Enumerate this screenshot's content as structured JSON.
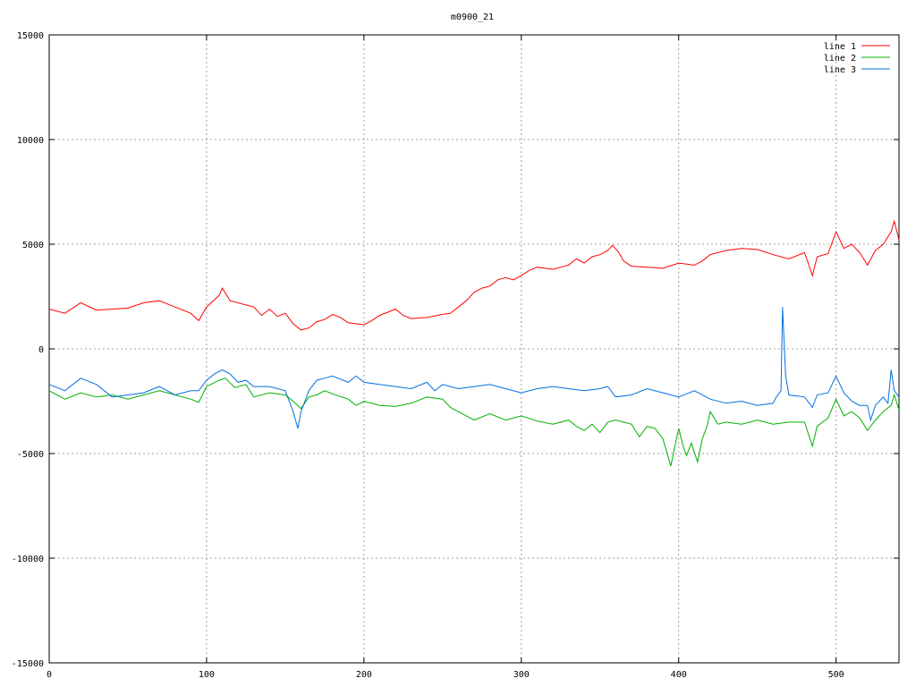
{
  "chart_data": {
    "type": "line",
    "title": "m0900_21",
    "xlabel": "",
    "ylabel": "",
    "xlim": [
      0,
      540
    ],
    "ylim": [
      -15000,
      15000
    ],
    "x_ticks": [
      0,
      100,
      200,
      300,
      400,
      500
    ],
    "y_ticks": [
      -15000,
      -10000,
      -5000,
      0,
      5000,
      10000,
      15000
    ],
    "x_tick_labels": [
      "0",
      "100",
      "200",
      "300",
      "400",
      "500"
    ],
    "y_tick_labels": [
      "-15000",
      "-10000",
      "-5000",
      "0",
      "5000",
      "10000",
      "15000"
    ],
    "grid": true,
    "legend_position": "top-right",
    "series": [
      {
        "name": "line 1",
        "color": "#ff0000",
        "points": [
          [
            0,
            1900
          ],
          [
            10,
            1700
          ],
          [
            20,
            2200
          ],
          [
            30,
            1850
          ],
          [
            40,
            1900
          ],
          [
            50,
            1950
          ],
          [
            60,
            2200
          ],
          [
            70,
            2300
          ],
          [
            80,
            2000
          ],
          [
            90,
            1700
          ],
          [
            95,
            1350
          ],
          [
            100,
            2000
          ],
          [
            108,
            2550
          ],
          [
            110,
            2900
          ],
          [
            115,
            2300
          ],
          [
            125,
            2100
          ],
          [
            130,
            2000
          ],
          [
            135,
            1600
          ],
          [
            140,
            1900
          ],
          [
            145,
            1550
          ],
          [
            150,
            1700
          ],
          [
            155,
            1200
          ],
          [
            160,
            900
          ],
          [
            165,
            1000
          ],
          [
            170,
            1300
          ],
          [
            175,
            1400
          ],
          [
            180,
            1650
          ],
          [
            185,
            1500
          ],
          [
            190,
            1250
          ],
          [
            200,
            1150
          ],
          [
            205,
            1350
          ],
          [
            210,
            1600
          ],
          [
            215,
            1750
          ],
          [
            220,
            1900
          ],
          [
            225,
            1600
          ],
          [
            230,
            1450
          ],
          [
            240,
            1500
          ],
          [
            250,
            1650
          ],
          [
            255,
            1700
          ],
          [
            260,
            2000
          ],
          [
            265,
            2300
          ],
          [
            270,
            2700
          ],
          [
            275,
            2900
          ],
          [
            280,
            3000
          ],
          [
            285,
            3300
          ],
          [
            290,
            3400
          ],
          [
            295,
            3300
          ],
          [
            300,
            3500
          ],
          [
            305,
            3750
          ],
          [
            310,
            3900
          ],
          [
            315,
            3850
          ],
          [
            320,
            3800
          ],
          [
            325,
            3900
          ],
          [
            330,
            4000
          ],
          [
            335,
            4300
          ],
          [
            340,
            4100
          ],
          [
            345,
            4400
          ],
          [
            350,
            4500
          ],
          [
            355,
            4700
          ],
          [
            358,
            4950
          ],
          [
            362,
            4600
          ],
          [
            365,
            4200
          ],
          [
            370,
            3950
          ],
          [
            380,
            3900
          ],
          [
            390,
            3850
          ],
          [
            400,
            4100
          ],
          [
            410,
            4000
          ],
          [
            415,
            4200
          ],
          [
            420,
            4500
          ],
          [
            430,
            4700
          ],
          [
            440,
            4800
          ],
          [
            450,
            4750
          ],
          [
            460,
            4500
          ],
          [
            470,
            4300
          ],
          [
            480,
            4600
          ],
          [
            485,
            3500
          ],
          [
            488,
            4400
          ],
          [
            495,
            4550
          ],
          [
            500,
            5600
          ],
          [
            505,
            4800
          ],
          [
            510,
            5000
          ],
          [
            515,
            4600
          ],
          [
            520,
            4000
          ],
          [
            525,
            4700
          ],
          [
            530,
            5000
          ],
          [
            535,
            5600
          ],
          [
            537,
            6100
          ],
          [
            540,
            5200
          ]
        ]
      },
      {
        "name": "line 2",
        "color": "#00b000",
        "points": [
          [
            0,
            -2000
          ],
          [
            10,
            -2400
          ],
          [
            20,
            -2100
          ],
          [
            30,
            -2300
          ],
          [
            40,
            -2200
          ],
          [
            50,
            -2400
          ],
          [
            60,
            -2200
          ],
          [
            70,
            -2000
          ],
          [
            80,
            -2200
          ],
          [
            90,
            -2400
          ],
          [
            95,
            -2550
          ],
          [
            100,
            -1800
          ],
          [
            108,
            -1500
          ],
          [
            112,
            -1400
          ],
          [
            118,
            -1850
          ],
          [
            125,
            -1700
          ],
          [
            130,
            -2300
          ],
          [
            140,
            -2100
          ],
          [
            150,
            -2200
          ],
          [
            155,
            -2500
          ],
          [
            160,
            -2850
          ],
          [
            165,
            -2300
          ],
          [
            170,
            -2200
          ],
          [
            175,
            -2000
          ],
          [
            180,
            -2150
          ],
          [
            190,
            -2400
          ],
          [
            195,
            -2700
          ],
          [
            200,
            -2500
          ],
          [
            210,
            -2700
          ],
          [
            220,
            -2750
          ],
          [
            230,
            -2600
          ],
          [
            240,
            -2300
          ],
          [
            250,
            -2400
          ],
          [
            255,
            -2800
          ],
          [
            260,
            -3000
          ],
          [
            265,
            -3200
          ],
          [
            270,
            -3400
          ],
          [
            280,
            -3100
          ],
          [
            290,
            -3400
          ],
          [
            300,
            -3200
          ],
          [
            310,
            -3450
          ],
          [
            320,
            -3600
          ],
          [
            330,
            -3400
          ],
          [
            335,
            -3700
          ],
          [
            340,
            -3900
          ],
          [
            345,
            -3600
          ],
          [
            350,
            -4000
          ],
          [
            355,
            -3500
          ],
          [
            360,
            -3400
          ],
          [
            370,
            -3600
          ],
          [
            375,
            -4200
          ],
          [
            380,
            -3700
          ],
          [
            385,
            -3800
          ],
          [
            390,
            -4300
          ],
          [
            395,
            -5600
          ],
          [
            398,
            -4500
          ],
          [
            400,
            -3800
          ],
          [
            403,
            -4700
          ],
          [
            405,
            -5100
          ],
          [
            408,
            -4500
          ],
          [
            412,
            -5400
          ],
          [
            415,
            -4300
          ],
          [
            418,
            -3700
          ],
          [
            420,
            -3000
          ],
          [
            425,
            -3600
          ],
          [
            430,
            -3500
          ],
          [
            440,
            -3600
          ],
          [
            450,
            -3400
          ],
          [
            460,
            -3600
          ],
          [
            470,
            -3500
          ],
          [
            480,
            -3500
          ],
          [
            485,
            -4650
          ],
          [
            488,
            -3700
          ],
          [
            495,
            -3300
          ],
          [
            500,
            -2400
          ],
          [
            505,
            -3200
          ],
          [
            510,
            -3000
          ],
          [
            515,
            -3300
          ],
          [
            520,
            -3900
          ],
          [
            525,
            -3400
          ],
          [
            530,
            -3000
          ],
          [
            535,
            -2700
          ],
          [
            537,
            -2200
          ],
          [
            540,
            -2900
          ]
        ]
      },
      {
        "name": "line 3",
        "color": "#0070e0",
        "points": [
          [
            0,
            -1700
          ],
          [
            10,
            -2000
          ],
          [
            20,
            -1400
          ],
          [
            30,
            -1700
          ],
          [
            40,
            -2300
          ],
          [
            50,
            -2200
          ],
          [
            60,
            -2100
          ],
          [
            70,
            -1800
          ],
          [
            80,
            -2200
          ],
          [
            90,
            -2000
          ],
          [
            95,
            -2000
          ],
          [
            100,
            -1500
          ],
          [
            105,
            -1200
          ],
          [
            110,
            -1000
          ],
          [
            115,
            -1200
          ],
          [
            120,
            -1600
          ],
          [
            125,
            -1500
          ],
          [
            130,
            -1800
          ],
          [
            140,
            -1800
          ],
          [
            150,
            -2000
          ],
          [
            155,
            -3000
          ],
          [
            158,
            -3800
          ],
          [
            160,
            -3000
          ],
          [
            165,
            -2000
          ],
          [
            170,
            -1500
          ],
          [
            175,
            -1400
          ],
          [
            180,
            -1300
          ],
          [
            190,
            -1600
          ],
          [
            195,
            -1300
          ],
          [
            200,
            -1600
          ],
          [
            210,
            -1700
          ],
          [
            220,
            -1800
          ],
          [
            230,
            -1900
          ],
          [
            240,
            -1600
          ],
          [
            245,
            -2000
          ],
          [
            250,
            -1700
          ],
          [
            260,
            -1900
          ],
          [
            270,
            -1800
          ],
          [
            280,
            -1700
          ],
          [
            290,
            -1900
          ],
          [
            300,
            -2100
          ],
          [
            310,
            -1900
          ],
          [
            320,
            -1800
          ],
          [
            330,
            -1900
          ],
          [
            340,
            -2000
          ],
          [
            350,
            -1900
          ],
          [
            355,
            -1800
          ],
          [
            360,
            -2300
          ],
          [
            370,
            -2200
          ],
          [
            380,
            -1900
          ],
          [
            390,
            -2100
          ],
          [
            400,
            -2300
          ],
          [
            410,
            -2000
          ],
          [
            420,
            -2400
          ],
          [
            430,
            -2600
          ],
          [
            440,
            -2500
          ],
          [
            450,
            -2700
          ],
          [
            460,
            -2600
          ],
          [
            462,
            -2300
          ],
          [
            465,
            -2000
          ],
          [
            466,
            2000
          ],
          [
            468,
            -1300
          ],
          [
            470,
            -2200
          ],
          [
            480,
            -2300
          ],
          [
            485,
            -2800
          ],
          [
            488,
            -2200
          ],
          [
            495,
            -2100
          ],
          [
            500,
            -1300
          ],
          [
            505,
            -2100
          ],
          [
            510,
            -2500
          ],
          [
            515,
            -2700
          ],
          [
            520,
            -2700
          ],
          [
            522,
            -3400
          ],
          [
            525,
            -2700
          ],
          [
            530,
            -2300
          ],
          [
            533,
            -2600
          ],
          [
            535,
            -1000
          ],
          [
            537,
            -2000
          ],
          [
            540,
            -2300
          ]
        ]
      }
    ]
  }
}
